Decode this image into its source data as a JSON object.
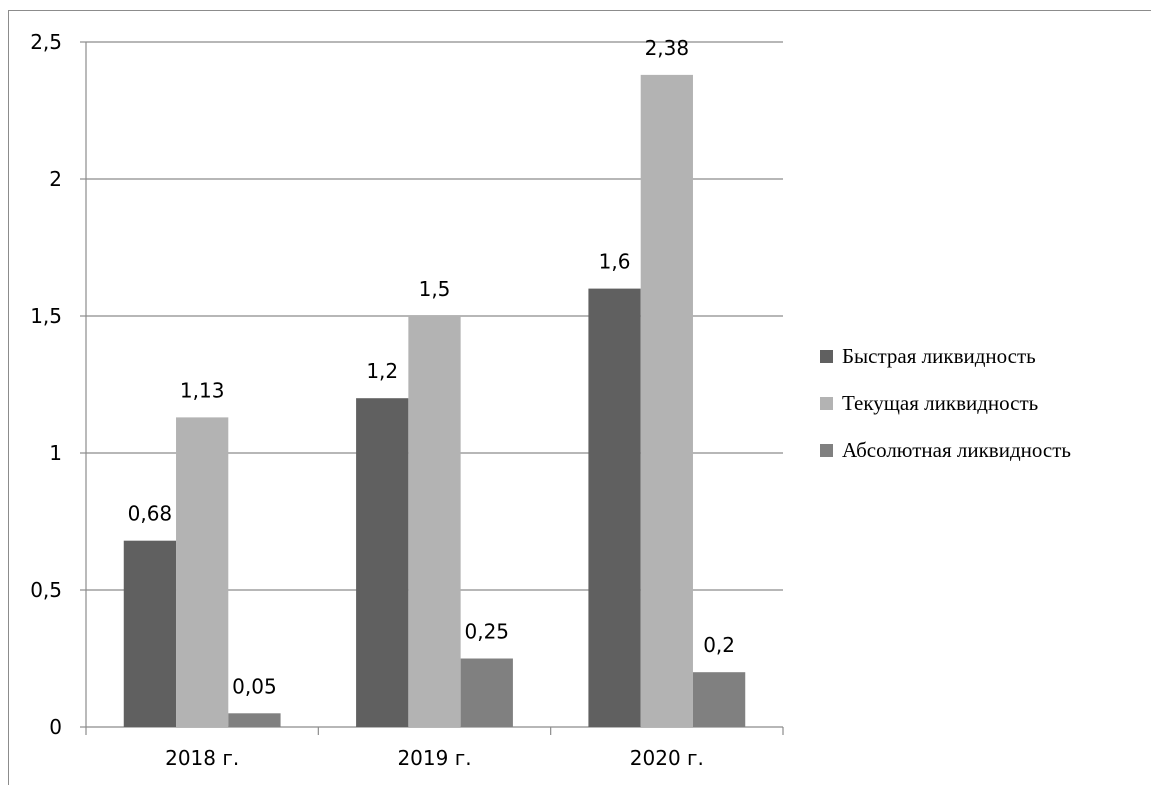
{
  "chart_data": {
    "type": "bar",
    "categories": [
      "2018 г.",
      "2019 г.",
      "2020 г."
    ],
    "series": [
      {
        "name": "Быстрая ликвидность",
        "values": [
          0.68,
          1.2,
          1.6
        ],
        "labels": [
          "0,68",
          "1,2",
          "1,6"
        ],
        "color": "#606060"
      },
      {
        "name": "Текущая ликвидность",
        "values": [
          1.13,
          1.5,
          2.38
        ],
        "labels": [
          "1,13",
          "1,5",
          "2,38"
        ],
        "color": "#b3b3b3"
      },
      {
        "name": "Абсолютная ликвидность",
        "values": [
          0.05,
          0.25,
          0.2
        ],
        "labels": [
          "0,05",
          "0,25",
          "0,2"
        ],
        "color": "#808080"
      }
    ],
    "ylim": [
      0,
      2.5
    ],
    "yticks": [
      0,
      0.5,
      1,
      1.5,
      2,
      2.5
    ],
    "ytick_labels": [
      "0",
      "0,5",
      "1",
      "1,5",
      "2",
      "2,5"
    ],
    "grid": true,
    "legend_position": "right",
    "title": "",
    "xlabel": "",
    "ylabel": ""
  }
}
